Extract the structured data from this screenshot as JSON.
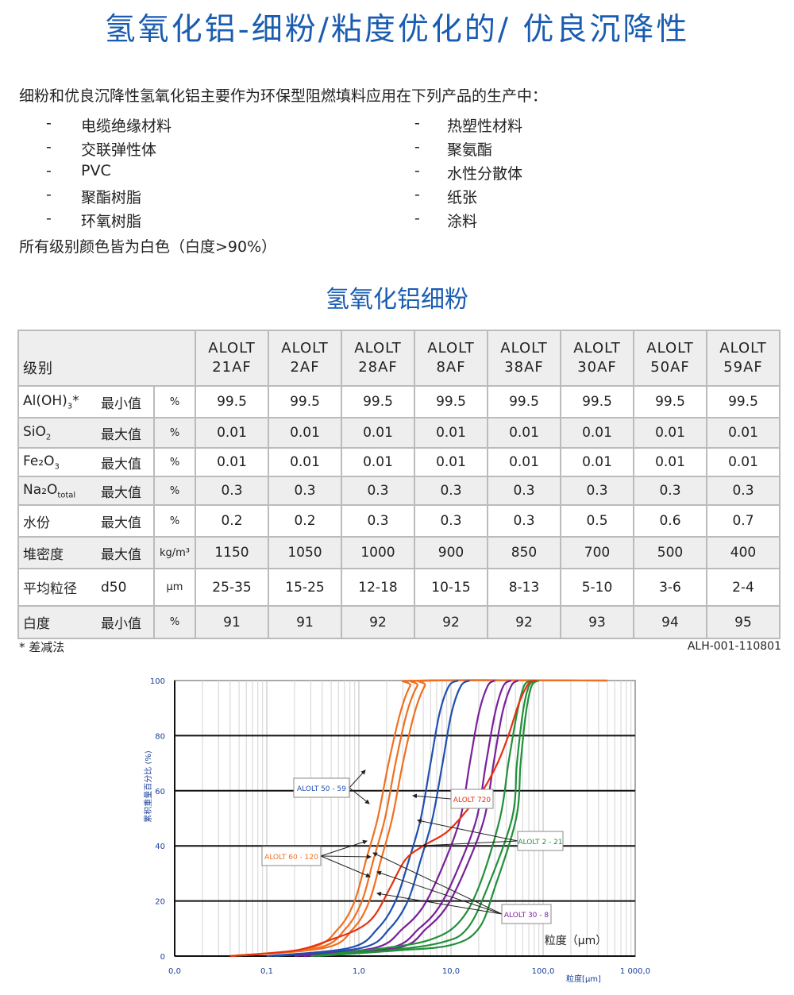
{
  "title": "氢氧化铝-细粉/粘度优化的/ 优良沉降性",
  "intro": "细粉和优良沉降性氢氧化铝主要作为环保型阻燃填料应用在下列产品的生产中：",
  "list_left": [
    "电缆绝缘材料",
    "交联弹性体",
    "PVC",
    "聚酯树脂",
    "环氧树脂"
  ],
  "list_right": [
    "热塑性材料",
    "聚氨酯",
    "水性分散体",
    "纸张",
    "涂料"
  ],
  "bullet": "-",
  "note": "所有级别颜色皆为白色（白度>90%）",
  "subtitle": "氢氧化铝细粉",
  "table": {
    "header_label": "级别",
    "columns": [
      [
        "ALOLT",
        "21AF"
      ],
      [
        "ALOLT",
        "2AF"
      ],
      [
        "ALOLT",
        "28AF"
      ],
      [
        "ALOLT",
        "8AF"
      ],
      [
        "ALOLT",
        "38AF"
      ],
      [
        "ALOLT",
        "30AF"
      ],
      [
        "ALOLT",
        "50AF"
      ],
      [
        "ALOLT",
        "59AF"
      ]
    ],
    "rows": [
      {
        "name": "Al(OH)",
        "sub": "3",
        "suffix": "*",
        "limit": "最小值",
        "unit": "%",
        "values": [
          "99.5",
          "99.5",
          "99.5",
          "99.5",
          "99.5",
          "99.5",
          "99.5",
          "99.5"
        ]
      },
      {
        "name": "SiO",
        "sub": "2",
        "suffix": "",
        "limit": "最大值",
        "unit": "%",
        "values": [
          "0.01",
          "0.01",
          "0.01",
          "0.01",
          "0.01",
          "0.01",
          "0.01",
          "0.01"
        ]
      },
      {
        "name": "Fe₂O",
        "sub": "3",
        "suffix": "",
        "limit": "最大值",
        "unit": "%",
        "values": [
          "0.01",
          "0.01",
          "0.01",
          "0.01",
          "0.01",
          "0.01",
          "0.01",
          "0.01"
        ]
      },
      {
        "name": "Na₂O",
        "sub": "total",
        "suffix": "",
        "limit": "最大值",
        "unit": "%",
        "values": [
          "0.3",
          "0.3",
          "0.3",
          "0.3",
          "0.3",
          "0.3",
          "0.3",
          "0.3"
        ]
      },
      {
        "name": "水份",
        "sub": "",
        "suffix": "",
        "limit": "最大值",
        "unit": "%",
        "values": [
          "0.2",
          "0.2",
          "0.3",
          "0.3",
          "0.3",
          "0.5",
          "0.6",
          "0.7"
        ]
      },
      {
        "name": "堆密度",
        "sub": "",
        "suffix": "",
        "limit": "最大值",
        "unit": "kg/m³",
        "values": [
          "1150",
          "1050",
          "1000",
          "900",
          "850",
          "700",
          "500",
          "400"
        ]
      },
      {
        "name": "平均粒径",
        "sub": "",
        "suffix": "",
        "limit": "d50",
        "unit": "μm",
        "values": [
          "25-35",
          "15-25",
          "12-18",
          "10-15",
          "8-13",
          "5-10",
          "3-6",
          "2-4"
        ]
      },
      {
        "name": "白度",
        "sub": "",
        "suffix": "",
        "limit": "最小值",
        "unit": "%",
        "values": [
          "91",
          "91",
          "92",
          "92",
          "92",
          "93",
          "94",
          "95"
        ]
      }
    ]
  },
  "footnote": "* 差减法",
  "doc_code": "ALH-001-110801",
  "chart_data": {
    "type": "line",
    "xscale": "log",
    "xlim": [
      0.01,
      1000
    ],
    "ylim": [
      0,
      100
    ],
    "x_tick_labels": [
      "0,0",
      "0,1",
      "1,0",
      "10,0",
      "100,0",
      "1 000,0"
    ],
    "y_tick_labels": [
      "0",
      "20",
      "40",
      "60",
      "80",
      "100"
    ],
    "ylabel": "累积重量百分比 (%)",
    "xlabel": "粒度[μm]",
    "inner_xlabel": "粒度（μm）",
    "grid": true,
    "colors": {
      "orange": "#f07020",
      "blue": "#1f4fb0",
      "purple": "#7a1f9a",
      "green": "#22903a",
      "red": "#e83010"
    },
    "series": [
      {
        "color": "orange",
        "points": [
          [
            0.04,
            0
          ],
          [
            0.3,
            3
          ],
          [
            0.6,
            10
          ],
          [
            0.9,
            20
          ],
          [
            1.2,
            35
          ],
          [
            1.6,
            50
          ],
          [
            2.1,
            70
          ],
          [
            2.8,
            88
          ],
          [
            3.6,
            98
          ],
          [
            4.5,
            100
          ],
          [
            500,
            100
          ]
        ]
      },
      {
        "color": "orange",
        "points": [
          [
            0.04,
            0
          ],
          [
            0.36,
            3
          ],
          [
            0.72,
            10
          ],
          [
            1.08,
            20
          ],
          [
            1.44,
            35
          ],
          [
            1.92,
            50
          ],
          [
            2.5,
            70
          ],
          [
            3.3,
            88
          ],
          [
            4.3,
            98
          ],
          [
            5.4,
            100
          ],
          [
            500,
            100
          ]
        ]
      },
      {
        "color": "orange",
        "points": [
          [
            0.04,
            0
          ],
          [
            0.43,
            3
          ],
          [
            0.87,
            10
          ],
          [
            1.3,
            20
          ],
          [
            1.74,
            35
          ],
          [
            2.3,
            50
          ],
          [
            3.0,
            70
          ],
          [
            4.0,
            88
          ],
          [
            5.2,
            98
          ],
          [
            6.5,
            100
          ],
          [
            500,
            100
          ]
        ]
      },
      {
        "color": "blue",
        "points": [
          [
            0.1,
            0
          ],
          [
            0.8,
            3
          ],
          [
            1.6,
            10
          ],
          [
            2.5,
            20
          ],
          [
            3.5,
            35
          ],
          [
            4.7,
            50
          ],
          [
            6,
            70
          ],
          [
            7.5,
            88
          ],
          [
            9.5,
            98
          ],
          [
            12,
            100
          ]
        ]
      },
      {
        "color": "blue",
        "points": [
          [
            0.12,
            0
          ],
          [
            1.08,
            3
          ],
          [
            2.16,
            10
          ],
          [
            3.4,
            20
          ],
          [
            4.7,
            35
          ],
          [
            6.3,
            50
          ],
          [
            8.1,
            70
          ],
          [
            10.1,
            88
          ],
          [
            12.8,
            98
          ],
          [
            16,
            100
          ]
        ]
      },
      {
        "color": "purple",
        "points": [
          [
            0.2,
            0
          ],
          [
            1.5,
            3
          ],
          [
            3,
            10
          ],
          [
            5,
            18
          ],
          [
            8,
            32
          ],
          [
            12.6,
            50
          ],
          [
            16,
            70
          ],
          [
            20,
            88
          ],
          [
            25,
            98
          ],
          [
            30,
            100
          ]
        ]
      },
      {
        "color": "purple",
        "points": [
          [
            0.25,
            0
          ],
          [
            2.2,
            3
          ],
          [
            4.5,
            10
          ],
          [
            7.5,
            18
          ],
          [
            12,
            32
          ],
          [
            19,
            50
          ],
          [
            24,
            70
          ],
          [
            30,
            88
          ],
          [
            37,
            98
          ],
          [
            45,
            100
          ]
        ]
      },
      {
        "color": "purple",
        "points": [
          [
            0.3,
            0
          ],
          [
            2.7,
            3
          ],
          [
            5.4,
            10
          ],
          [
            9,
            18
          ],
          [
            14.5,
            32
          ],
          [
            23,
            50
          ],
          [
            29,
            70
          ],
          [
            36,
            88
          ],
          [
            45,
            98
          ],
          [
            54,
            100
          ]
        ]
      },
      {
        "color": "green",
        "points": [
          [
            0.3,
            0
          ],
          [
            2,
            3
          ],
          [
            6,
            6
          ],
          [
            12,
            12
          ],
          [
            20,
            25
          ],
          [
            34,
            50
          ],
          [
            42,
            70
          ],
          [
            52,
            88
          ],
          [
            62,
            98
          ],
          [
            75,
            100
          ]
        ]
      },
      {
        "color": "green",
        "points": [
          [
            0.3,
            0
          ],
          [
            2,
            2
          ],
          [
            8,
            5
          ],
          [
            15,
            10
          ],
          [
            25,
            25
          ],
          [
            46,
            50
          ],
          [
            52,
            70
          ],
          [
            60,
            88
          ],
          [
            70,
            98
          ],
          [
            85,
            100
          ]
        ]
      },
      {
        "color": "green",
        "points": [
          [
            0.35,
            0
          ],
          [
            2.5,
            2
          ],
          [
            10,
            4
          ],
          [
            20,
            10
          ],
          [
            30,
            25
          ],
          [
            51,
            50
          ],
          [
            57,
            70
          ],
          [
            65,
            88
          ],
          [
            75,
            98
          ],
          [
            90,
            100
          ]
        ]
      },
      {
        "color": "red",
        "points": [
          [
            0.04,
            0
          ],
          [
            0.2,
            2
          ],
          [
            0.5,
            6
          ],
          [
            1,
            10
          ],
          [
            1.5,
            15
          ],
          [
            2.2,
            25
          ],
          [
            3.2,
            35
          ],
          [
            5,
            40
          ],
          [
            9,
            45
          ],
          [
            15,
            53
          ],
          [
            22,
            60
          ],
          [
            32,
            70
          ],
          [
            42,
            80
          ],
          [
            55,
            92
          ],
          [
            70,
            99
          ],
          [
            85,
            100
          ]
        ]
      }
    ],
    "annotations": [
      {
        "text": "ALOLT 50 - 59",
        "color": "blue"
      },
      {
        "text": "ALOLT 60 - 120",
        "color": "orange"
      },
      {
        "text": "ALOLT 720",
        "color": "red"
      },
      {
        "text": "ALOLT 2 - 21",
        "color": "green"
      },
      {
        "text": "ALOLT 30 - 8",
        "color": "purple"
      }
    ]
  }
}
